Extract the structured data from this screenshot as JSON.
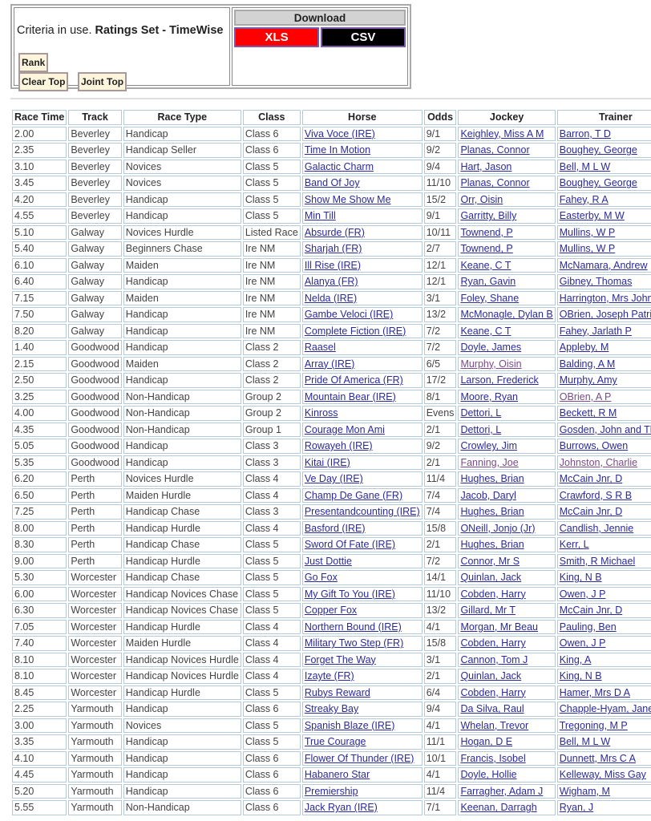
{
  "criteria": {
    "prefix": "Criteria in use. ",
    "set": "Ratings Set - TimeWise"
  },
  "buttons": {
    "rank": "Rank",
    "clear_top": "Clear Top",
    "joint_top": "Joint Top"
  },
  "download": {
    "title": "Download",
    "xls": "XLS",
    "csv": "CSV",
    "colors": {
      "xls": "#ff0000",
      "csv": "#000000"
    }
  },
  "table": {
    "headers": [
      "Race Time",
      "Track",
      "Race Type",
      "Class",
      "Horse",
      "Odds",
      "Jockey",
      "Trainer"
    ],
    "visited_links": [
      "Murphy, Oisin",
      "OBrien, A P",
      "Fanning, Joe",
      "Johnston, Charlie"
    ],
    "rows": [
      [
        "2.00",
        "Beverley",
        "Handicap",
        "Class 6",
        "Viva Voce (IRE)",
        "9/1",
        "Keighley, Miss A M",
        "Barron, T D"
      ],
      [
        "2.35",
        "Beverley",
        "Handicap Seller",
        "Class 6",
        "Time In Motion",
        "9/2",
        "Planas, Connor",
        "Boughey, George"
      ],
      [
        "3.10",
        "Beverley",
        "Novices",
        "Class 5",
        "Galactic Charm",
        "9/4",
        "Hart, Jason",
        "Bell, M L W"
      ],
      [
        "3.45",
        "Beverley",
        "Novices",
        "Class 5",
        "Band Of Joy",
        "11/10",
        "Planas, Connor",
        "Boughey, George"
      ],
      [
        "4.20",
        "Beverley",
        "Handicap",
        "Class 5",
        "Show Me Show Me",
        "15/2",
        "Orr, Oisin",
        "Fahey, R A"
      ],
      [
        "4.55",
        "Beverley",
        "Handicap",
        "Class 5",
        "Min Till",
        "9/1",
        "Garritty, Billy",
        "Easterby, M W"
      ],
      [
        "5.10",
        "Galway",
        "Novices Hurdle",
        "Listed Race",
        "Absurde (FR)",
        "10/11",
        "Townend, P",
        "Mullins, W P"
      ],
      [
        "5.40",
        "Galway",
        "Beginners Chase",
        "Ire NM",
        "Sharjah (FR)",
        "2/7",
        "Townend, P",
        "Mullins, W P"
      ],
      [
        "6.10",
        "Galway",
        "Maiden",
        "Ire NM",
        "Ill Rise (IRE)",
        "12/1",
        "Keane, C T",
        "McNamara, Andrew"
      ],
      [
        "6.40",
        "Galway",
        "Handicap",
        "Ire NM",
        "Alanya (FR)",
        "12/1",
        "Ryan, Gavin",
        "Gibney, Thomas"
      ],
      [
        "7.15",
        "Galway",
        "Maiden",
        "Ire NM",
        "Nelda (IRE)",
        "3/1",
        "Foley, Shane",
        "Harrington, Mrs John"
      ],
      [
        "7.50",
        "Galway",
        "Handicap",
        "Ire NM",
        "Gambe Veloci (IRE)",
        "13/2",
        "McMonagle, Dylan B",
        "OBrien, Joseph Patrick"
      ],
      [
        "8.20",
        "Galway",
        "Handicap",
        "Ire NM",
        "Complete Fiction (IRE)",
        "7/2",
        "Keane, C T",
        "Fahey, Jarlath P"
      ],
      [
        "1.40",
        "Goodwood",
        "Handicap",
        "Class 2",
        "Raasel",
        "7/2",
        "Doyle, James",
        "Appleby, M"
      ],
      [
        "2.15",
        "Goodwood",
        "Maiden",
        "Class 2",
        "Array (IRE)",
        "6/5",
        "Murphy, Oisin",
        "Balding, A M"
      ],
      [
        "2.50",
        "Goodwood",
        "Handicap",
        "Class 2",
        "Pride Of America (FR)",
        "17/2",
        "Larson, Frederick",
        "Murphy, Amy"
      ],
      [
        "3.25",
        "Goodwood",
        "Non-Handicap",
        "Group 2",
        "Mountain Bear (IRE)",
        "8/1",
        "Moore, Ryan",
        "OBrien, A P"
      ],
      [
        "4.00",
        "Goodwood",
        "Non-Handicap",
        "Group 2",
        "Kinross",
        "Evens",
        "Dettori, L",
        "Beckett, R M"
      ],
      [
        "4.35",
        "Goodwood",
        "Non-Handicap",
        "Group 1",
        "Courage Mon Ami",
        "2/1",
        "Dettori, L",
        "Gosden, John and Thady"
      ],
      [
        "5.05",
        "Goodwood",
        "Handicap",
        "Class 3",
        "Rowayeh (IRE)",
        "9/2",
        "Crowley, Jim",
        "Burrows, Owen"
      ],
      [
        "5.35",
        "Goodwood",
        "Handicap",
        "Class 3",
        "Kitai (IRE)",
        "2/1",
        "Fanning, Joe",
        "Johnston, Charlie"
      ],
      [
        "6.20",
        "Perth",
        "Novices Hurdle",
        "Class 4",
        "Ve Day (IRE)",
        "11/4",
        "Hughes, Brian",
        "McCain Jnr, D"
      ],
      [
        "6.50",
        "Perth",
        "Maiden Hurdle",
        "Class 4",
        "Champ De Gane (FR)",
        "7/4",
        "Jacob, Daryl",
        "Crawford, S R B"
      ],
      [
        "7.25",
        "Perth",
        "Handicap Chase",
        "Class 3",
        "Presentandcounting (IRE)",
        "7/4",
        "Hughes, Brian",
        "McCain Jnr, D"
      ],
      [
        "8.00",
        "Perth",
        "Handicap Hurdle",
        "Class 4",
        "Basford (IRE)",
        "15/8",
        "ONeill, Jonjo (Jr)",
        "Candlish, Jennie"
      ],
      [
        "8.30",
        "Perth",
        "Handicap Chase",
        "Class 5",
        "Sword Of Fate (IRE)",
        "2/1",
        "Hughes, Brian",
        "Kerr, L"
      ],
      [
        "9.00",
        "Perth",
        "Handicap Hurdle",
        "Class 5",
        "Just Dottie",
        "7/2",
        "Connor, Mr S",
        "Smith, R Michael"
      ],
      [
        "5.30",
        "Worcester",
        "Handicap Chase",
        "Class 5",
        "Go Fox",
        "14/1",
        "Quinlan, Jack",
        "King, N B"
      ],
      [
        "6.00",
        "Worcester",
        "Handicap Novices Chase",
        "Class 5",
        "My Gift To You (IRE)",
        "11/10",
        "Cobden, Harry",
        "Owen, J P"
      ],
      [
        "6.30",
        "Worcester",
        "Handicap Novices Chase",
        "Class 5",
        "Copper Fox",
        "13/2",
        "Gillard, Mr T",
        "McCain Jnr, D"
      ],
      [
        "7.05",
        "Worcester",
        "Handicap Hurdle",
        "Class 4",
        "Northern Bound (IRE)",
        "4/1",
        "Morgan, Mr Beau",
        "Pauling, Ben"
      ],
      [
        "7.40",
        "Worcester",
        "Maiden Hurdle",
        "Class 4",
        "Military Two Step (FR)",
        "15/8",
        "Cobden, Harry",
        "Owen, J P"
      ],
      [
        "8.10",
        "Worcester",
        "Handicap Novices Hurdle",
        "Class 4",
        "Forget The Way",
        "3/1",
        "Cannon, Tom J",
        "King, A"
      ],
      [
        "8.10",
        "Worcester",
        "Handicap Novices Hurdle",
        "Class 4",
        "Izayte (FR)",
        "2/1",
        "Quinlan, Jack",
        "King, N B"
      ],
      [
        "8.45",
        "Worcester",
        "Handicap Hurdle",
        "Class 5",
        "Rubys Reward",
        "6/4",
        "Cobden, Harry",
        "Hamer, Mrs D A"
      ],
      [
        "2.25",
        "Yarmouth",
        "Handicap",
        "Class 6",
        "Streaky Bay",
        "9/4",
        "Da Silva, Raul",
        "Chapple-Hyam, Jane"
      ],
      [
        "3.00",
        "Yarmouth",
        "Novices",
        "Class 5",
        "Spanish Blaze (IRE)",
        "4/1",
        "Whelan, Trevor",
        "Tregoning, M P"
      ],
      [
        "3.35",
        "Yarmouth",
        "Handicap",
        "Class 5",
        "True Courage",
        "11/1",
        "Hogan, D E",
        "Bell, M L W"
      ],
      [
        "4.10",
        "Yarmouth",
        "Handicap",
        "Class 6",
        "Flower Of Thunder (IRE)",
        "10/1",
        "Francis, Isobel",
        "Dunnett, Mrs C A"
      ],
      [
        "4.45",
        "Yarmouth",
        "Handicap",
        "Class 6",
        "Habanero Star",
        "4/1",
        "Doyle, Hollie",
        "Kelleway, Miss Gay"
      ],
      [
        "5.20",
        "Yarmouth",
        "Handicap",
        "Class 6",
        "Premiership",
        "11/4",
        "Farragher, Adam J",
        "Wigham, M"
      ],
      [
        "5.55",
        "Yarmouth",
        "Non-Handicap",
        "Class 6",
        "Jack Ryan (IRE)",
        "7/1",
        "Keenan, Darragh",
        "Ryan, J"
      ]
    ]
  }
}
